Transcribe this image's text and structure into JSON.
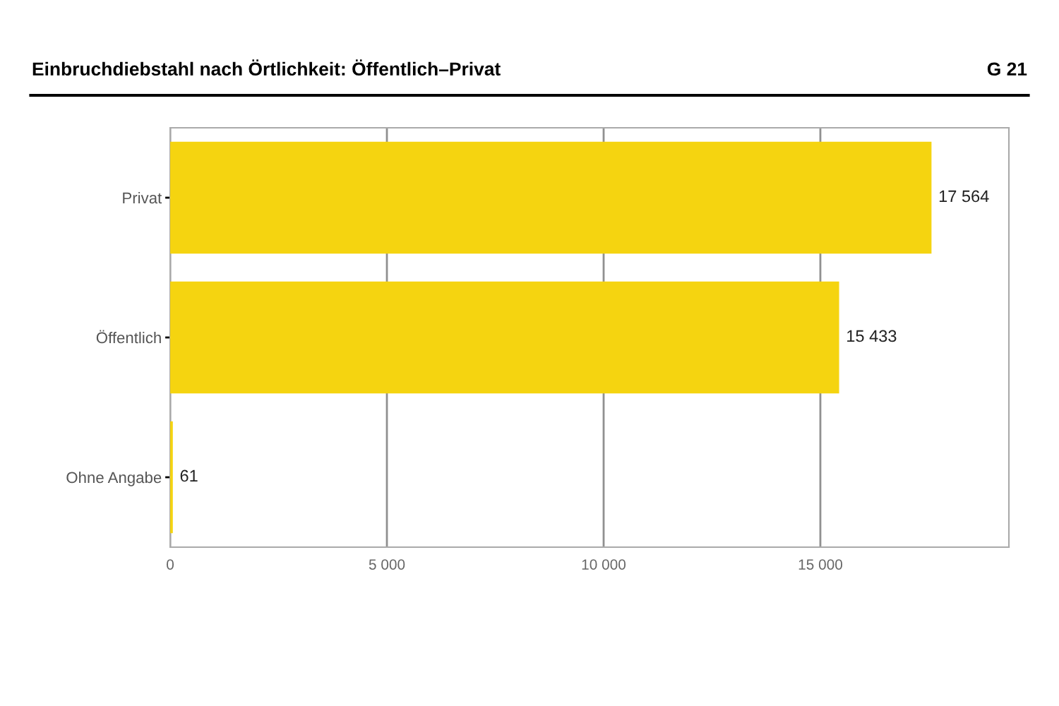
{
  "chart_data": {
    "type": "bar",
    "orientation": "horizontal",
    "title": "Einbruchdiebstahl nach Örtlichkeit: Öffentlich–Privat",
    "annotations": [
      "G 21"
    ],
    "categories": [
      "Privat",
      "Öffentlich",
      "Ohne Angabe"
    ],
    "values": [
      17564,
      15433,
      61
    ],
    "value_labels": [
      "17 564",
      "15 433",
      "61"
    ],
    "color": "#f5d410",
    "xlim": [
      0,
      19350
    ],
    "xticks": [
      0,
      {
        "value": 5000,
        "label": "5 000"
      },
      {
        "value": 10000,
        "label": "10 000"
      },
      {
        "value": 15000,
        "label": "15 000"
      }
    ],
    "grid": "x"
  }
}
